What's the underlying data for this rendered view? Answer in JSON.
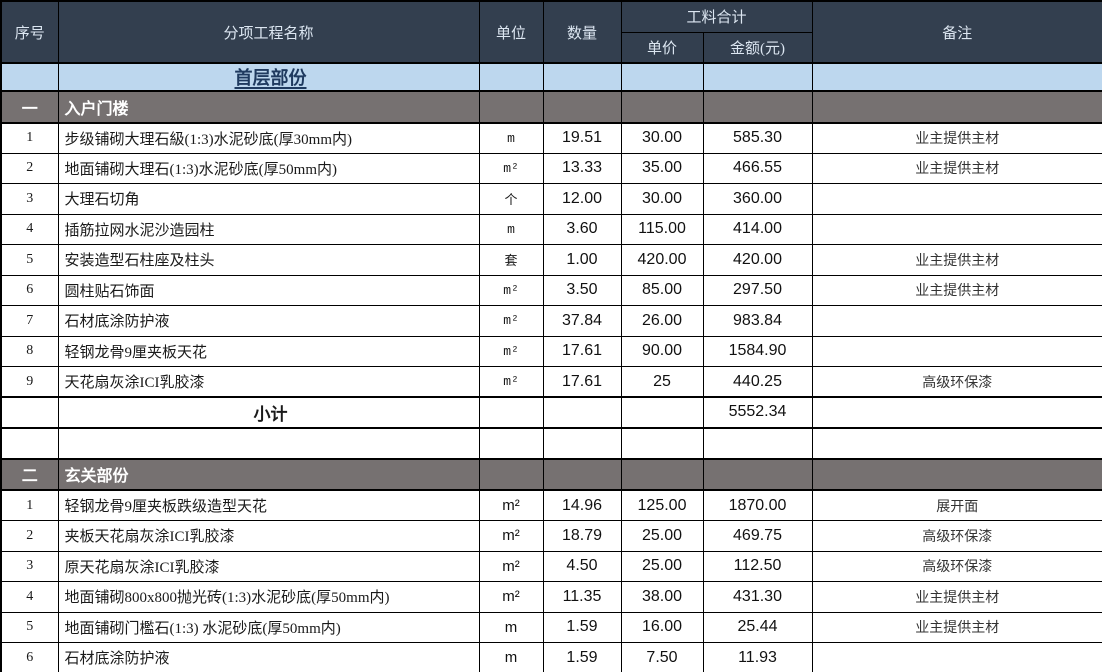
{
  "header": {
    "no": "序号",
    "name": "分项工程名称",
    "unit": "单位",
    "qty": "数量",
    "group": "工料合计",
    "price": "单价",
    "amount": "金额(元)",
    "remark": "备注"
  },
  "colors": {
    "header_bg": "#333F4F",
    "header_text": "#DCE6F1",
    "title_bg": "#BDD7EE",
    "title_text": "#1F3A5F",
    "section_bg": "#767171",
    "section_text": "#FFFFFF",
    "border": "#000000"
  },
  "rows": [
    {
      "type": "title",
      "name": "首层部份"
    },
    {
      "type": "section",
      "no": "一",
      "name": "入户门楼"
    },
    {
      "type": "item",
      "no": "1",
      "name": "步级铺砌大理石級(1:3)水泥砂底(厚30mm内)",
      "unit": "m",
      "unit_style": "mono",
      "qty": "19.51",
      "price": "30.00",
      "amount": "585.30",
      "remark": "业主提供主材"
    },
    {
      "type": "item",
      "no": "2",
      "name": "地面铺砌大理石(1:3)水泥砂底(厚50mm内)",
      "unit": "m²",
      "unit_style": "mono",
      "qty": "13.33",
      "price": "35.00",
      "amount": "466.55",
      "remark": "业主提供主材"
    },
    {
      "type": "item",
      "no": "3",
      "name": "大理石切角",
      "unit": "个",
      "unit_style": "mono",
      "qty": "12.00",
      "price": "30.00",
      "amount": "360.00",
      "remark": ""
    },
    {
      "type": "item",
      "no": "4",
      "name": "插筋拉网水泥沙造园柱",
      "unit": "m",
      "unit_style": "mono",
      "qty": "3.60",
      "price": "115.00",
      "amount": "414.00",
      "remark": ""
    },
    {
      "type": "item",
      "no": "5",
      "name": "安装造型石柱座及柱头",
      "unit": "套",
      "unit_style": "mono",
      "qty": "1.00",
      "price": "420.00",
      "amount": "420.00",
      "remark": "业主提供主材"
    },
    {
      "type": "item",
      "no": "6",
      "name": "圆柱贴石饰面",
      "unit": "m²",
      "unit_style": "mono",
      "qty": "3.50",
      "price": "85.00",
      "amount": "297.50",
      "remark": "业主提供主材"
    },
    {
      "type": "item",
      "no": "7",
      "name": "石材底涂防护液",
      "unit": "m²",
      "unit_style": "mono",
      "qty": "37.84",
      "price": "26.00",
      "amount": "983.84",
      "remark": ""
    },
    {
      "type": "item",
      "no": "8",
      "name": "轻钢龙骨9厘夹板天花",
      "unit": "m²",
      "unit_style": "mono",
      "qty": "17.61",
      "price": "90.00",
      "amount": "1584.90",
      "remark": ""
    },
    {
      "type": "item",
      "no": "9",
      "name": "天花扇灰涂ICI乳胶漆",
      "unit": "m²",
      "unit_style": "mono",
      "qty": "17.61",
      "price": "25",
      "amount": "440.25",
      "remark": "高级环保漆"
    },
    {
      "type": "subtotal",
      "label": "小计",
      "amount": "5552.34"
    },
    {
      "type": "blank"
    },
    {
      "type": "section",
      "no": "二",
      "name": "玄关部份"
    },
    {
      "type": "item",
      "no": "1",
      "name": "轻钢龙骨9厘夹板跌级造型天花",
      "unit": "m²",
      "unit_style": "sans",
      "qty": "14.96",
      "price": "125.00",
      "amount": "1870.00",
      "remark": "展开面"
    },
    {
      "type": "item",
      "no": "2",
      "name": "夹板天花扇灰涂ICI乳胶漆",
      "unit": "m²",
      "unit_style": "sans",
      "qty": "18.79",
      "price": "25.00",
      "amount": "469.75",
      "remark": "高级环保漆"
    },
    {
      "type": "item",
      "no": "3",
      "name": "原天花扇灰涂ICI乳胶漆",
      "unit": "m²",
      "unit_style": "sans",
      "qty": "4.50",
      "price": "25.00",
      "amount": "112.50",
      "remark": "高级环保漆"
    },
    {
      "type": "item",
      "no": "4",
      "name": "地面铺砌800x800抛光砖(1:3)水泥砂底(厚50mm内)",
      "unit": "m²",
      "unit_style": "sans",
      "qty": "11.35",
      "price": "38.00",
      "amount": "431.30",
      "remark": "业主提供主材"
    },
    {
      "type": "item",
      "no": "5",
      "name": "地面铺砌门檻石(1:3)  水泥砂底(厚50mm内)",
      "unit": "m",
      "unit_style": "sans",
      "qty": "1.59",
      "price": "16.00",
      "price_style": "mono",
      "amount": "25.44",
      "remark": "业主提供主材"
    },
    {
      "type": "item",
      "no": "6",
      "name": "石材底涂防护液",
      "unit": "m",
      "unit_style": "sans",
      "qty": "1.59",
      "price": "7.50",
      "amount": "11.93",
      "remark": ""
    }
  ]
}
